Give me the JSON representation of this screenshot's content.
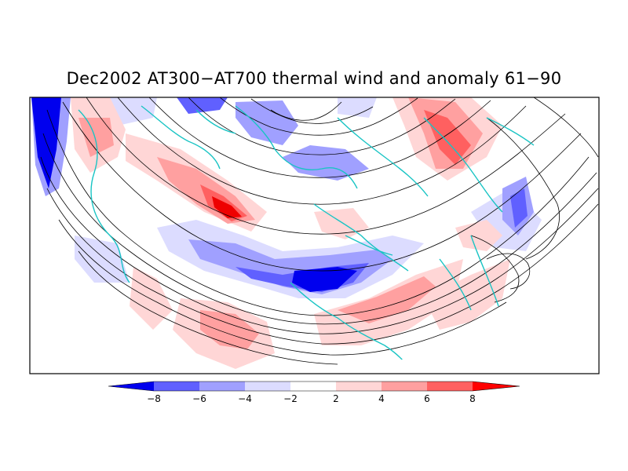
{
  "title": "Dec2002 AT300−AT700 thermal wind and anomaly 61−90",
  "colorbar": {
    "labels": [
      "−8",
      "−6",
      "−4",
      "−2",
      "2",
      "4",
      "6",
      "8"
    ],
    "colors": [
      "#0000ee",
      "#6060ff",
      "#a0a0ff",
      "#dcdcff",
      "#ffffff",
      "#ffd6d6",
      "#ffa0a0",
      "#ff6060",
      "#ff0000"
    ]
  },
  "map": {
    "coastline_color": "#19c4c4",
    "streamline_color": "#000000",
    "projection": "north polar stereographic (lower half)"
  }
}
